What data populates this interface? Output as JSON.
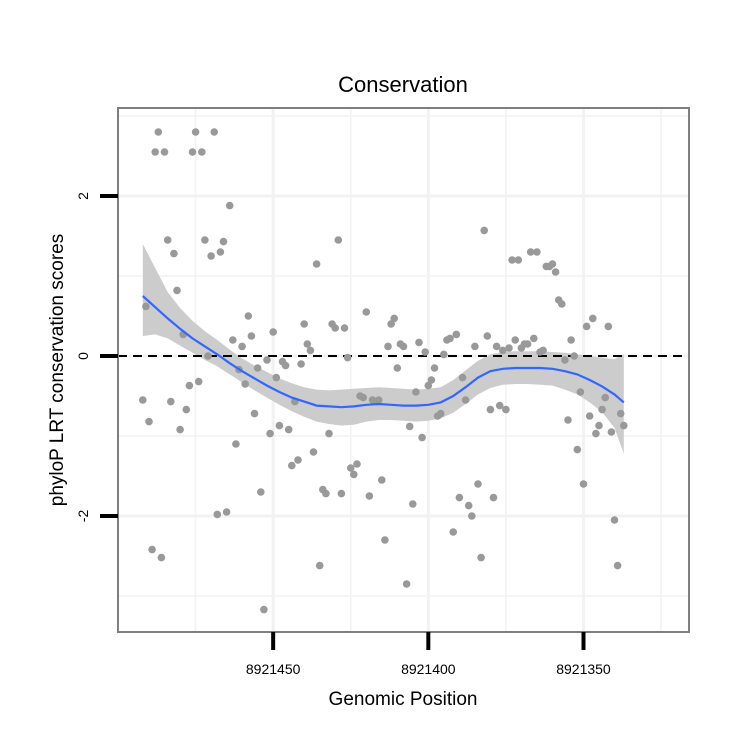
{
  "chart_data": {
    "type": "scatter",
    "title": "Conservation",
    "xlabel": "Genomic Position",
    "ylabel": "phyloP LRT conservation scores",
    "x_reversed": true,
    "xlim": [
      8921500,
      8921316
    ],
    "ylim": [
      -3.45,
      3.1
    ],
    "x_ticks": [
      8921450,
      8921400,
      8921350
    ],
    "x_tick_labels": [
      "8921450",
      "8921400",
      "8921350"
    ],
    "y_ticks": [
      -2,
      0,
      2
    ],
    "y_tick_labels": [
      "-2",
      "0",
      "2"
    ],
    "reference_line_y": 0,
    "grid": true,
    "colors": {
      "points": "#999999",
      "smooth_line": "#3366ff",
      "ribbon": "#cccccc",
      "panel_border": "#7f7f7f",
      "grid": "#f2f2f2"
    },
    "series": [
      {
        "name": "scores",
        "points": [
          [
            8921492,
            -0.55
          ],
          [
            8921491,
            0.62
          ],
          [
            8921490,
            -0.82
          ],
          [
            8921489,
            -2.42
          ],
          [
            8921488,
            2.55
          ],
          [
            8921487,
            2.8
          ],
          [
            8921486,
            -2.52
          ],
          [
            8921485,
            2.55
          ],
          [
            8921484,
            1.45
          ],
          [
            8921483,
            -0.57
          ],
          [
            8921482,
            1.28
          ],
          [
            8921481,
            0.82
          ],
          [
            8921480,
            -0.92
          ],
          [
            8921479,
            0.27
          ],
          [
            8921478,
            -0.67
          ],
          [
            8921477,
            -0.37
          ],
          [
            8921476,
            2.55
          ],
          [
            8921475,
            2.8
          ],
          [
            8921474,
            -0.32
          ],
          [
            8921473,
            2.55
          ],
          [
            8921472,
            1.45
          ],
          [
            8921471,
            0.0
          ],
          [
            8921470,
            1.25
          ],
          [
            8921469,
            2.8
          ],
          [
            8921468,
            -1.98
          ],
          [
            8921467,
            1.3
          ],
          [
            8921466,
            1.43
          ],
          [
            8921465,
            -1.95
          ],
          [
            8921464,
            1.88
          ],
          [
            8921463,
            0.2
          ],
          [
            8921462,
            -1.1
          ],
          [
            8921461,
            -0.17
          ],
          [
            8921460,
            0.12
          ],
          [
            8921459,
            -0.35
          ],
          [
            8921458,
            0.5
          ],
          [
            8921457,
            0.25
          ],
          [
            8921456,
            -0.72
          ],
          [
            8921455,
            -0.15
          ],
          [
            8921454,
            -1.7
          ],
          [
            8921453,
            -3.17
          ],
          [
            8921452,
            -0.05
          ],
          [
            8921451,
            -0.97
          ],
          [
            8921450,
            0.3
          ],
          [
            8921449,
            -0.27
          ],
          [
            8921448,
            -0.87
          ],
          [
            8921447,
            -0.07
          ],
          [
            8921446,
            -0.12
          ],
          [
            8921445,
            -0.92
          ],
          [
            8921444,
            -1.37
          ],
          [
            8921443,
            -0.57
          ],
          [
            8921442,
            -1.3
          ],
          [
            8921441,
            -0.1
          ],
          [
            8921440,
            0.4
          ],
          [
            8921439,
            0.15
          ],
          [
            8921438,
            0.07
          ],
          [
            8921437,
            -1.2
          ],
          [
            8921436,
            1.15
          ],
          [
            8921435,
            -2.62
          ],
          [
            8921434,
            -1.67
          ],
          [
            8921433,
            -1.72
          ],
          [
            8921432,
            -0.97
          ],
          [
            8921431,
            0.4
          ],
          [
            8921430,
            0.35
          ],
          [
            8921429,
            1.45
          ],
          [
            8921428,
            -1.72
          ],
          [
            8921427,
            0.35
          ],
          [
            8921426,
            -0.02
          ],
          [
            8921425,
            -1.4
          ],
          [
            8921424,
            -1.48
          ],
          [
            8921423,
            -1.35
          ],
          [
            8921422,
            -0.5
          ],
          [
            8921421,
            -0.52
          ],
          [
            8921420,
            0.55
          ],
          [
            8921419,
            -1.75
          ],
          [
            8921418,
            -0.55
          ],
          [
            8921417,
            -0.57
          ],
          [
            8921416,
            -0.55
          ],
          [
            8921415,
            -1.55
          ],
          [
            8921414,
            -2.3
          ],
          [
            8921413,
            0.12
          ],
          [
            8921412,
            0.4
          ],
          [
            8921411,
            0.47
          ],
          [
            8921410,
            -0.15
          ],
          [
            8921409,
            0.15
          ],
          [
            8921408,
            0.12
          ],
          [
            8921407,
            -2.85
          ],
          [
            8921406,
            -0.88
          ],
          [
            8921405,
            -1.85
          ],
          [
            8921404,
            -0.45
          ],
          [
            8921403,
            0.17
          ],
          [
            8921402,
            -1.02
          ],
          [
            8921401,
            0.05
          ],
          [
            8921400,
            -0.37
          ],
          [
            8921399,
            -0.3
          ],
          [
            8921398,
            -0.15
          ],
          [
            8921397,
            -0.75
          ],
          [
            8921396,
            -0.72
          ],
          [
            8921395,
            0.02
          ],
          [
            8921394,
            0.2
          ],
          [
            8921393,
            0.22
          ],
          [
            8921392,
            -2.2
          ],
          [
            8921391,
            0.27
          ],
          [
            8921390,
            -1.77
          ],
          [
            8921389,
            -0.27
          ],
          [
            8921388,
            -0.55
          ],
          [
            8921387,
            -1.87
          ],
          [
            8921386,
            -2.0
          ],
          [
            8921385,
            0.12
          ],
          [
            8921384,
            -1.6
          ],
          [
            8921383,
            -2.52
          ],
          [
            8921382,
            1.57
          ],
          [
            8921381,
            0.25
          ],
          [
            8921380,
            -0.67
          ],
          [
            8921379,
            -1.77
          ],
          [
            8921378,
            0.12
          ],
          [
            8921377,
            -0.62
          ],
          [
            8921376,
            0.07
          ],
          [
            8921375,
            -0.67
          ],
          [
            8921374,
            0.1
          ],
          [
            8921373,
            1.2
          ],
          [
            8921372,
            0.2
          ],
          [
            8921371,
            1.2
          ],
          [
            8921370,
            0.1
          ],
          [
            8921369,
            0.15
          ],
          [
            8921368,
            0.15
          ],
          [
            8921367,
            1.3
          ],
          [
            8921366,
            0.22
          ],
          [
            8921365,
            1.3
          ],
          [
            8921364,
            0.05
          ],
          [
            8921363,
            0.07
          ],
          [
            8921362,
            1.12
          ],
          [
            8921361,
            1.12
          ],
          [
            8921360,
            1.15
          ],
          [
            8921359,
            1.05
          ],
          [
            8921358,
            0.7
          ],
          [
            8921357,
            0.65
          ],
          [
            8921356,
            -0.05
          ],
          [
            8921355,
            -0.8
          ],
          [
            8921354,
            0.2
          ],
          [
            8921353,
            0.0
          ],
          [
            8921352,
            -1.17
          ],
          [
            8921351,
            -0.45
          ],
          [
            8921350,
            -1.6
          ],
          [
            8921349,
            0.37
          ],
          [
            8921348,
            -0.75
          ],
          [
            8921347,
            0.47
          ],
          [
            8921346,
            -0.97
          ],
          [
            8921345,
            -0.87
          ],
          [
            8921344,
            -0.67
          ],
          [
            8921343,
            -0.52
          ],
          [
            8921342,
            0.37
          ],
          [
            8921341,
            -0.95
          ],
          [
            8921340,
            -2.05
          ],
          [
            8921339,
            -2.62
          ],
          [
            8921338,
            -0.72
          ],
          [
            8921337,
            -0.87
          ]
        ]
      }
    ],
    "smooth": {
      "method": "loess",
      "x": [
        8921492,
        8921488,
        8921484,
        8921480,
        8921476,
        8921472,
        8921468,
        8921464,
        8921460,
        8921456,
        8921452,
        8921448,
        8921444,
        8921440,
        8921436,
        8921432,
        8921428,
        8921424,
        8921420,
        8921416,
        8921412,
        8921408,
        8921404,
        8921400,
        8921396,
        8921392,
        8921388,
        8921384,
        8921380,
        8921376,
        8921372,
        8921368,
        8921364,
        8921360,
        8921356,
        8921352,
        8921348,
        8921344,
        8921340,
        8921337
      ],
      "y": [
        0.75,
        0.61,
        0.47,
        0.34,
        0.22,
        0.12,
        0.02,
        -0.09,
        -0.19,
        -0.28,
        -0.37,
        -0.45,
        -0.52,
        -0.57,
        -0.62,
        -0.63,
        -0.64,
        -0.63,
        -0.61,
        -0.6,
        -0.61,
        -0.62,
        -0.62,
        -0.61,
        -0.58,
        -0.5,
        -0.39,
        -0.27,
        -0.19,
        -0.16,
        -0.15,
        -0.15,
        -0.15,
        -0.16,
        -0.19,
        -0.23,
        -0.3,
        -0.38,
        -0.48,
        -0.58
      ],
      "lo": [
        0.25,
        0.27,
        0.22,
        0.13,
        0.04,
        -0.05,
        -0.13,
        -0.23,
        -0.33,
        -0.43,
        -0.52,
        -0.61,
        -0.69,
        -0.76,
        -0.82,
        -0.85,
        -0.87,
        -0.86,
        -0.82,
        -0.8,
        -0.8,
        -0.81,
        -0.82,
        -0.81,
        -0.78,
        -0.71,
        -0.6,
        -0.48,
        -0.4,
        -0.36,
        -0.35,
        -0.35,
        -0.36,
        -0.37,
        -0.42,
        -0.48,
        -0.58,
        -0.7,
        -0.9,
        -1.22
      ],
      "hi": [
        1.4,
        1.1,
        0.8,
        0.6,
        0.44,
        0.31,
        0.2,
        0.08,
        -0.03,
        -0.12,
        -0.2,
        -0.28,
        -0.34,
        -0.39,
        -0.42,
        -0.43,
        -0.42,
        -0.41,
        -0.4,
        -0.39,
        -0.4,
        -0.41,
        -0.42,
        -0.41,
        -0.39,
        -0.3,
        -0.18,
        -0.06,
        0.02,
        0.05,
        0.06,
        0.06,
        0.06,
        0.05,
        0.04,
        0.02,
        0.0,
        -0.02,
        -0.04,
        0.02
      ]
    }
  }
}
